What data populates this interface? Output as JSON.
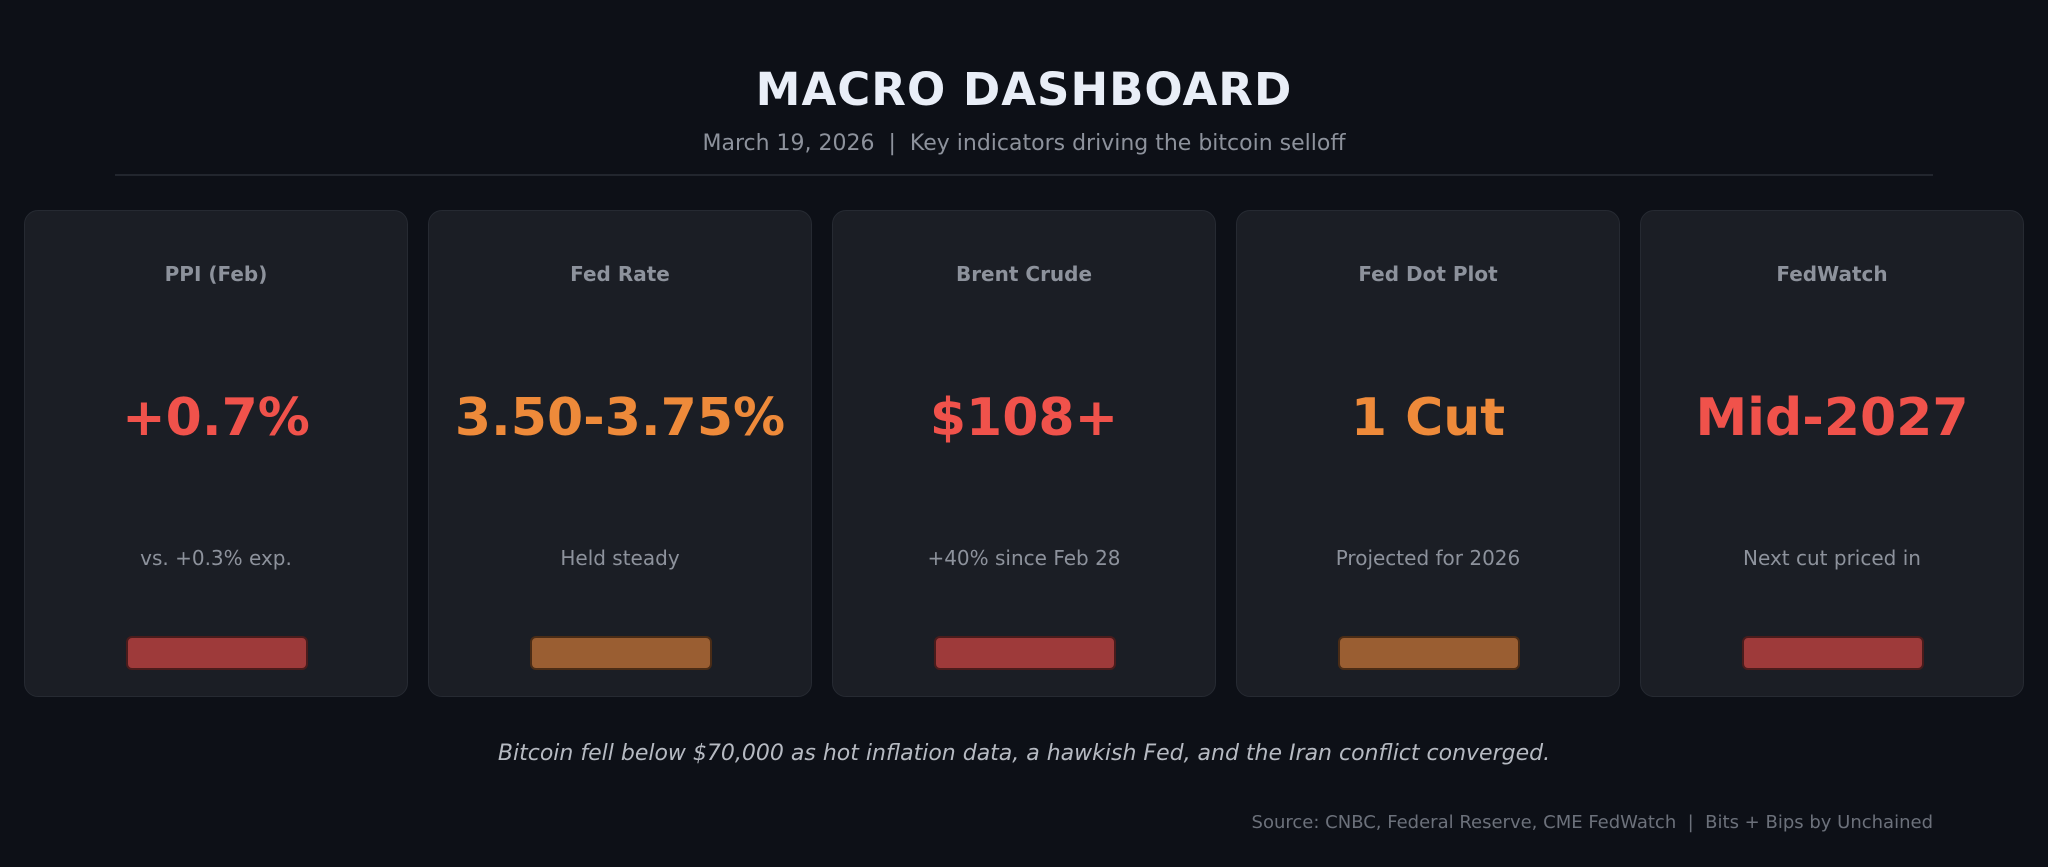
{
  "header": {
    "title": "MACRO DASHBOARD",
    "subtitle": "March 19, 2026  |  Key indicators driving the bitcoin selloff"
  },
  "cards": [
    {
      "label": "PPI (Feb)",
      "value": "+0.7%",
      "note": "vs. +0.3% exp.",
      "value_color": "#f0524b",
      "bar_color": "#9e3a3a",
      "bar_border": "#4a1c1c"
    },
    {
      "label": "Fed Rate",
      "value": "3.50-3.75%",
      "note": "Held steady",
      "value_color": "#ee8a3a",
      "bar_color": "#9a5e32",
      "bar_border": "#4a2c16"
    },
    {
      "label": "Brent Crude",
      "value": "$108+",
      "note": "+40% since Feb 28",
      "value_color": "#f0524b",
      "bar_color": "#9e3a3a",
      "bar_border": "#4a1c1c"
    },
    {
      "label": "Fed Dot Plot",
      "value": "1 Cut",
      "note": "Projected for 2026",
      "value_color": "#ee8a3a",
      "bar_color": "#9a5e32",
      "bar_border": "#4a2c16"
    },
    {
      "label": "FedWatch",
      "value": "Mid-2027",
      "note": "Next cut priced in",
      "value_color": "#f0524b",
      "bar_color": "#9e3a3a",
      "bar_border": "#4a1c1c"
    }
  ],
  "footer": {
    "note": "Bitcoin fell below $70,000 as hot inflation data, a hawkish Fed, and the Iran conflict converged.",
    "source": "Source: CNBC, Federal Reserve, CME FedWatch  |  Bits + Bips by Unchained"
  },
  "colors": {
    "background": "#0d1017",
    "card_background": "#1b1e25",
    "muted_text": "#8d929c"
  }
}
